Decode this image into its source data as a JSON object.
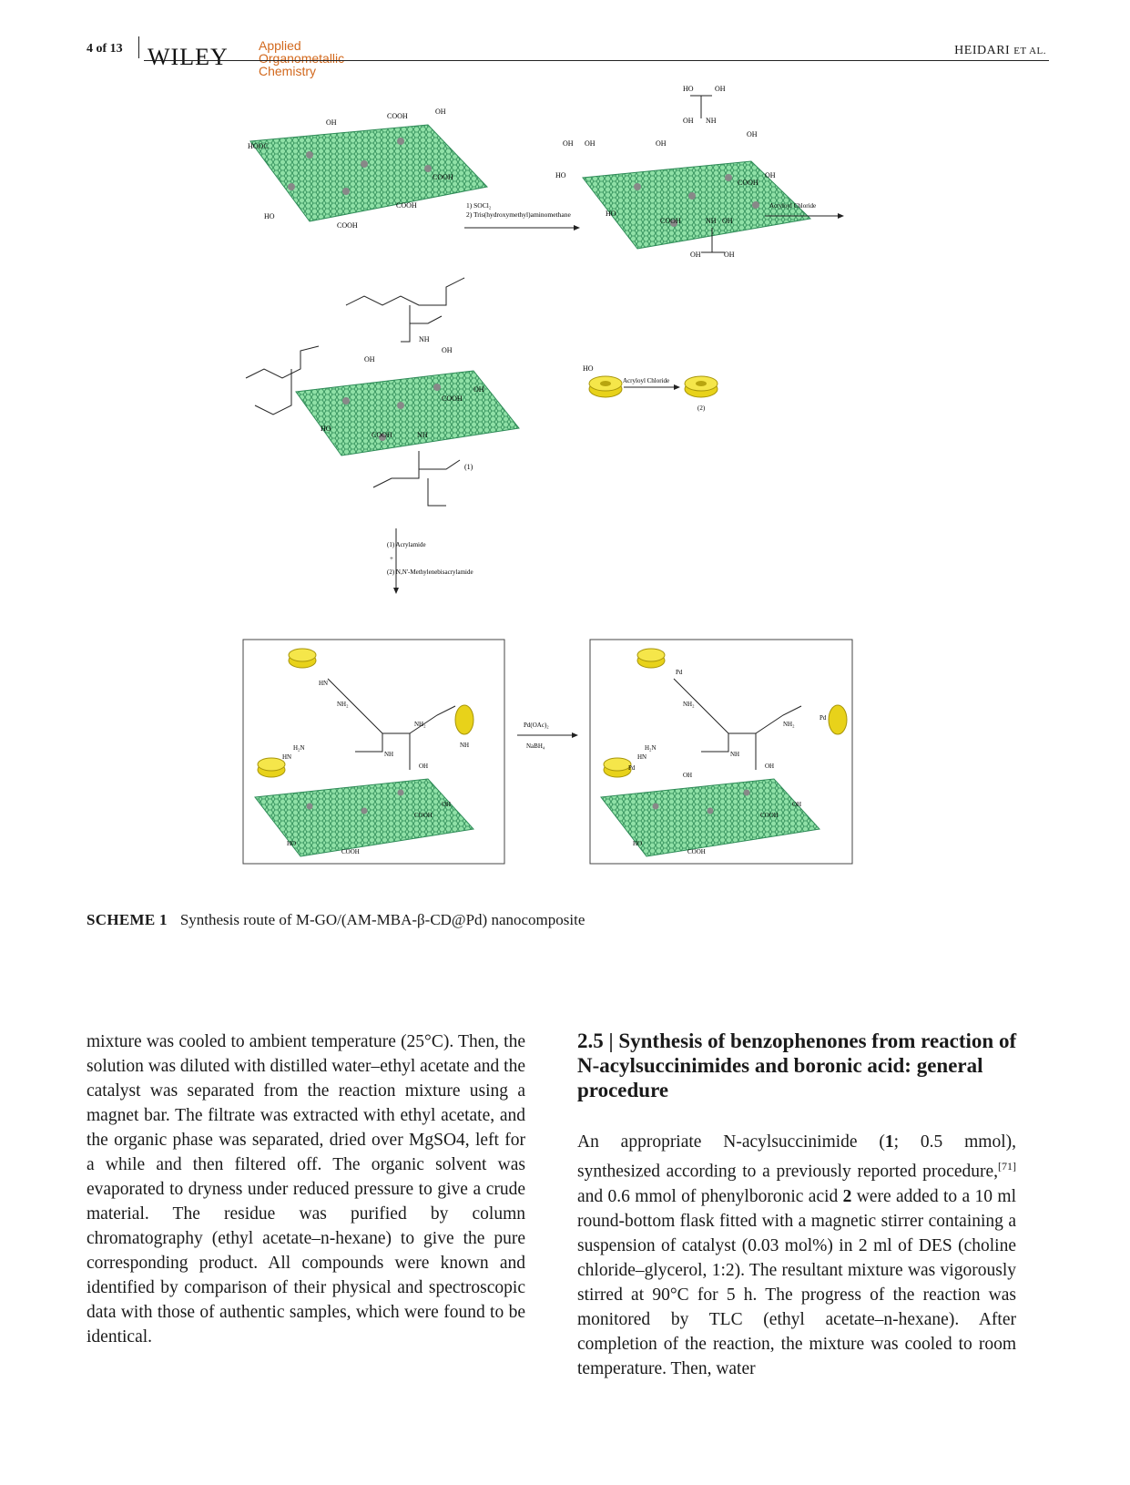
{
  "header": {
    "page_number": "4 of 13",
    "publisher": "WILEY",
    "journal_lines": [
      "Applied",
      "Organometallic",
      "Chemistry"
    ],
    "running_head_main": "HEIDARI",
    "running_head_suffix": "ET AL."
  },
  "scheme": {
    "labels": {
      "cooh": "COOH",
      "oh": "OH",
      "hooc": "HOOC",
      "ho": "HO",
      "nh": "NH",
      "step1_reagent_a": "1) SOCl₂",
      "step1_reagent_b": "2) Tris(hydroxymethyl)aminomethane",
      "step2_reagent": "Acryloyl Chloride",
      "cd_reagent": "Acryloyl Chloride",
      "cd_ho": "HO",
      "compound1_label": "(1)",
      "compound2_label": "(2)",
      "down_reagent_1": "(1)  Acrylamide",
      "down_plus": "+",
      "down_reagent_2": "(2)  N,N'-Methylenebisacrylamide",
      "final_reagent_a": "Pd(OAc)₂",
      "final_reagent_b": "NaBH₄",
      "pd": "Pd",
      "nh2": "NH₂",
      "h2n": "H₂N",
      "hn": "HN"
    }
  },
  "caption": {
    "label": "SCHEME 1",
    "text": "Synthesis route of M-GO/(AM-MBA-β-CD@Pd) nanocomposite"
  },
  "left_column": {
    "text": "mixture was cooled to ambient temperature (25°C). Then, the solution was diluted with distilled water–ethyl acetate and the catalyst was separated from the reaction mixture using a magnet bar. The filtrate was extracted with ethyl acetate, and the organic phase was separated, dried over MgSO4, left for a while and then filtered off. The organic solvent was evaporated to dryness under reduced pressure to give a crude material. The residue was purified by column chromatography (ethyl acetate–n-hexane) to give the pure corresponding product. All compounds were known and identified by comparison of their physical and spectroscopic data with those of authentic samples, which were found to be identical."
  },
  "section": {
    "number": "2.5",
    "separator": "|",
    "title": "Synthesis of benzophenones from reaction of N-acylsuccinimides and boronic acid: general procedure"
  },
  "right_column": {
    "p1": "An appropriate N-acylsuccinimide (",
    "bold1": "1",
    "p2": "; 0.5 mmol), synthesized according to a previously reported procedure,",
    "ref": "[71]",
    "p3": " and 0.6 mmol of phenylboronic acid ",
    "bold2": "2",
    "p4": " were added to a 10 ml round-bottom flask fitted with a magnetic stirrer containing a suspension of catalyst (0.03 mol%) in 2 ml of DES (choline chloride–glycerol, 1:2). The resultant mixture was vigorously stirred at 90°C for 5 h. The progress of the reaction was monitored by TLC (ethyl acetate–n-hexane). After completion of the reaction, the mixture was cooled to room temperature. Then, water"
  },
  "colors": {
    "graphene_fill": "#6fd48a",
    "graphene_stroke": "#2e8b57",
    "cyclodextrin": "#e8d21a",
    "journal_accent": "#d2691e"
  }
}
